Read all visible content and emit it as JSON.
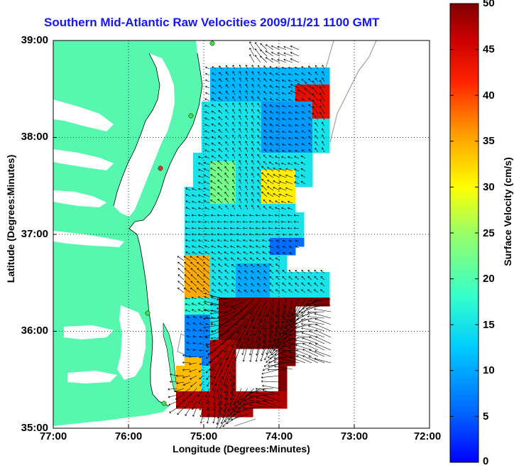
{
  "title": "Southern Mid-Atlantic Raw Velocities 2009/11/21 1100 GMT",
  "map": {
    "x_axis_label": "Longitude (Degrees:Minutes)",
    "y_axis_label": "Latitude (Degrees:Minutes)",
    "x_ticks": [
      "77:00",
      "76:00",
      "75:00",
      "74:00",
      "73:00",
      "72:00"
    ],
    "y_ticks": [
      "39:00",
      "38:00",
      "37:00",
      "36:00",
      "35:00"
    ],
    "lon_range": [
      -77,
      -72
    ],
    "lat_range": [
      35,
      39
    ],
    "grid": true,
    "land_color": "#58f7b0",
    "sea_color": "#ffffff",
    "isobath_color": "#a0a0a0",
    "vector_color": "#000000",
    "station_color": "#3fe04a",
    "station_alert_color": "#e83030"
  },
  "colorbar": {
    "label": "Surface Velocity (cm/s)",
    "ticks": [
      "50",
      "45",
      "40",
      "35",
      "30",
      "25",
      "20",
      "15",
      "10",
      "5",
      "0"
    ],
    "range": [
      0,
      50
    ],
    "colormap": "jet"
  }
}
